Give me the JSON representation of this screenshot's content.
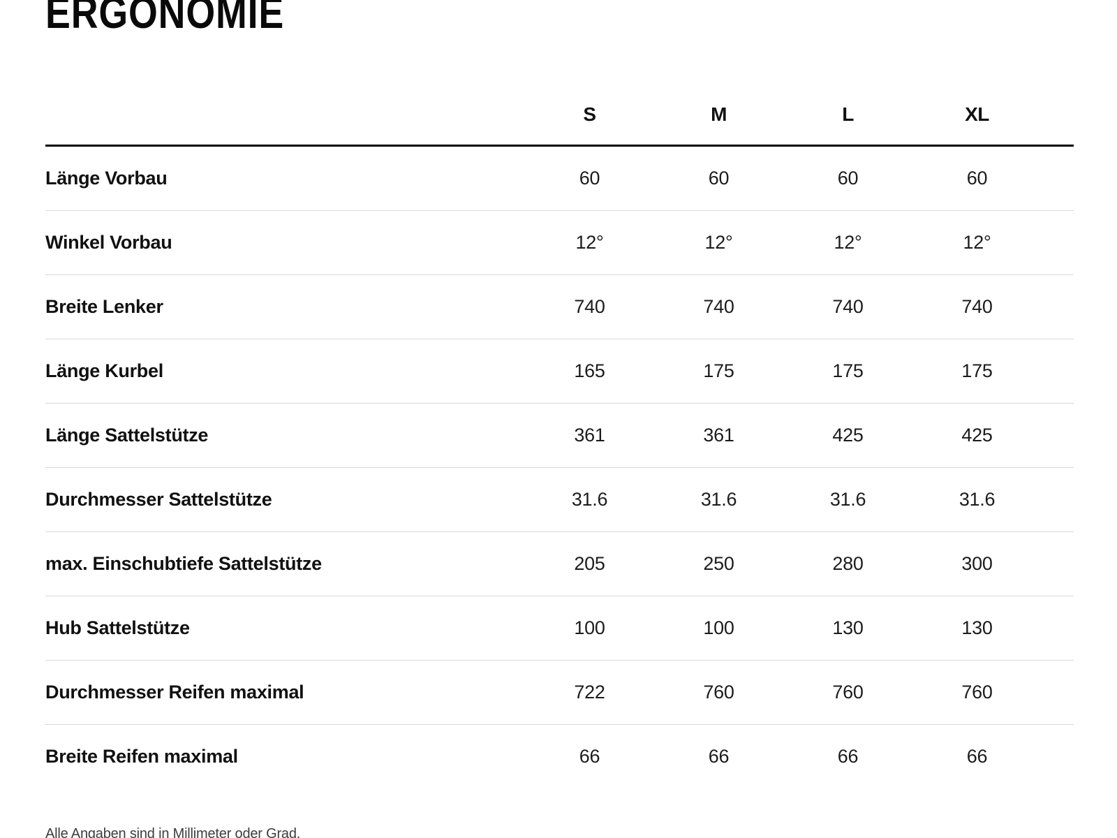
{
  "page": {
    "title": "ERGONOMIE",
    "footnote": "Alle Angaben sind in Millimeter oder Grad."
  },
  "colors": {
    "text": "#111111",
    "header_rule": "#000000",
    "row_separator": "#d8d8d8",
    "footnote_text": "#3d3d3d",
    "background": "#ffffff"
  },
  "chart_data": {
    "type": "table",
    "title": "ERGONOMIE",
    "columns": [
      "S",
      "M",
      "L",
      "XL"
    ],
    "rows": [
      {
        "label": "Länge Vorbau",
        "values": [
          "60",
          "60",
          "60",
          "60"
        ]
      },
      {
        "label": "Winkel Vorbau",
        "values": [
          "12°",
          "12°",
          "12°",
          "12°"
        ]
      },
      {
        "label": "Breite Lenker",
        "values": [
          "740",
          "740",
          "740",
          "740"
        ]
      },
      {
        "label": "Länge Kurbel",
        "values": [
          "165",
          "175",
          "175",
          "175"
        ]
      },
      {
        "label": "Länge Sattelstütze",
        "values": [
          "361",
          "361",
          "425",
          "425"
        ]
      },
      {
        "label": "Durchmesser Sattelstütze",
        "values": [
          "31.6",
          "31.6",
          "31.6",
          "31.6"
        ]
      },
      {
        "label": "max. Einschubtiefe Sattelstütze",
        "values": [
          "205",
          "250",
          "280",
          "300"
        ]
      },
      {
        "label": "Hub Sattelstütze",
        "values": [
          "100",
          "100",
          "130",
          "130"
        ]
      },
      {
        "label": "Durchmesser Reifen maximal",
        "values": [
          "722",
          "760",
          "760",
          "760"
        ]
      },
      {
        "label": "Breite Reifen maximal",
        "values": [
          "66",
          "66",
          "66",
          "66"
        ]
      }
    ]
  }
}
